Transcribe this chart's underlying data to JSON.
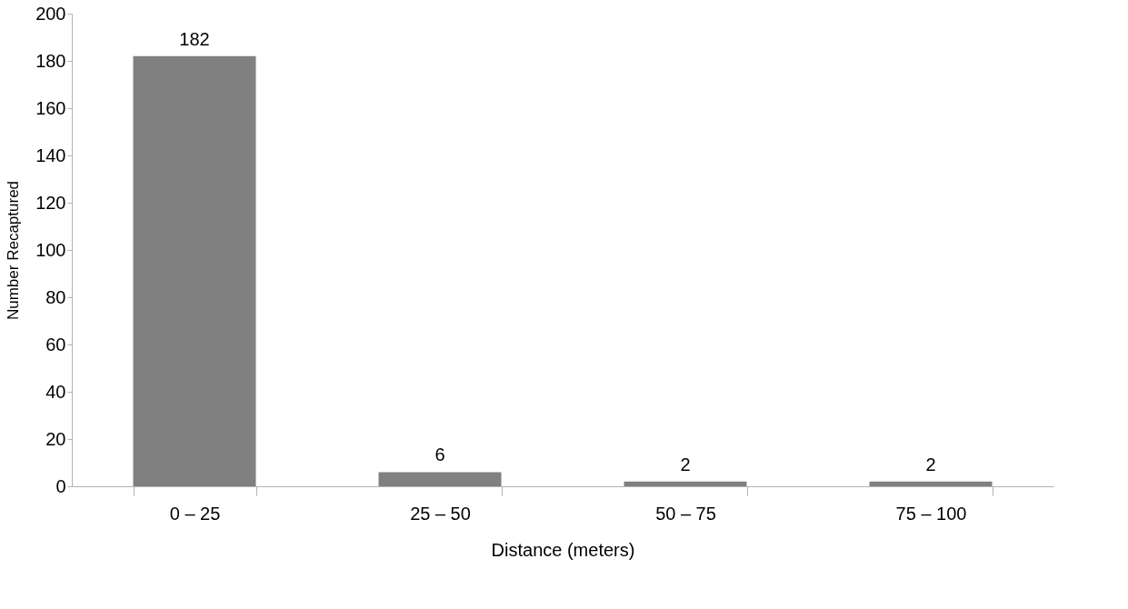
{
  "chart_data": {
    "type": "bar",
    "xlabel": "Distance (meters)",
    "ylabel": "Number Recaptured",
    "categories": [
      "0 – 25",
      "25 – 50",
      "50 – 75",
      "75 – 100"
    ],
    "values": [
      182,
      6,
      2,
      2
    ],
    "color": "#808080",
    "ylim": [
      0,
      200
    ],
    "yticks": [
      0,
      20,
      40,
      60,
      80,
      100,
      120,
      140,
      160,
      180,
      200
    ],
    "data_labels": true,
    "grid": false
  }
}
